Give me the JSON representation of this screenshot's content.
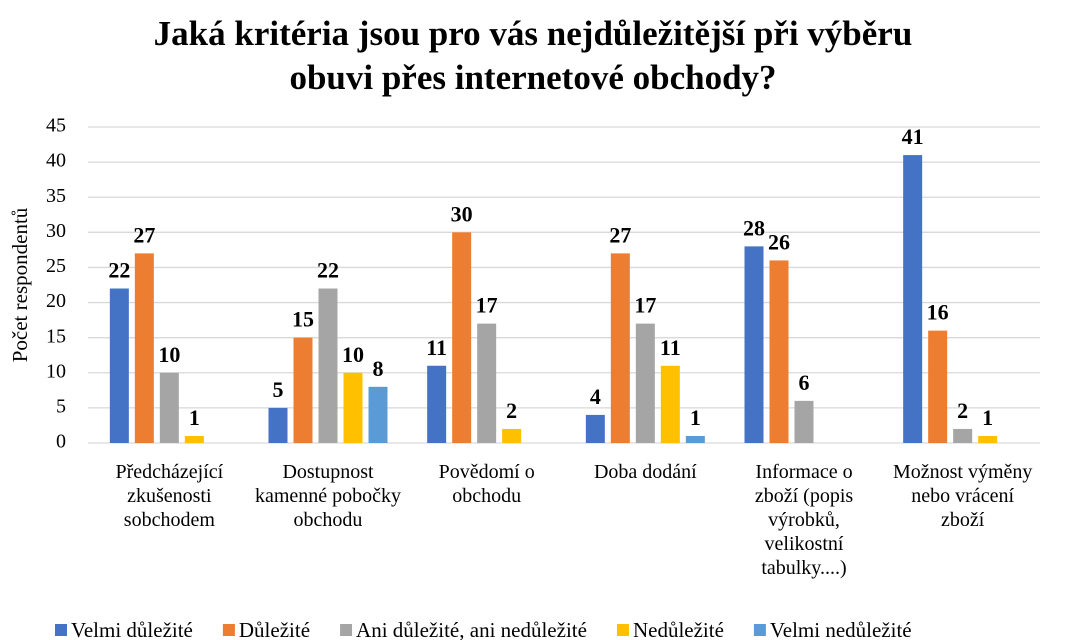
{
  "chart_data": {
    "type": "bar",
    "title": "Jaká kritéria jsou pro vás nejdůležitější při výběru obuvi přes internetové obchody?",
    "y_label": "Počet respondentů",
    "categories": [
      "Předcházející zkušenosti sobchodem",
      "Dostupnost kamenné pobočky obchodu",
      "Povědomí o obchodu",
      "Doba dodání",
      "Informace o zboží (popis výrobků, velikostní tabulky....)",
      "Možnost výměny nebo vrácení zboží"
    ],
    "series": [
      {
        "name": "Velmi důležité",
        "color": "#4472c4",
        "values": [
          22,
          5,
          11,
          4,
          28,
          41
        ]
      },
      {
        "name": "Důležité",
        "color": "#ed7d31",
        "values": [
          27,
          15,
          30,
          27,
          26,
          16
        ]
      },
      {
        "name": "Ani důležité, ani nedůležité",
        "color": "#a5a5a5",
        "values": [
          10,
          22,
          17,
          17,
          6,
          2
        ]
      },
      {
        "name": "Nedůležité",
        "color": "#ffc000",
        "values": [
          1,
          10,
          2,
          11,
          null,
          1
        ]
      },
      {
        "name": "Velmi nedůležité",
        "color": "#5b9bd5",
        "values": [
          null,
          8,
          null,
          1,
          null,
          null
        ]
      }
    ],
    "ylim": [
      0,
      45
    ],
    "yticks": [
      0,
      5,
      10,
      15,
      20,
      25,
      30,
      35,
      40,
      45
    ],
    "grid": true,
    "legend": "bottom"
  }
}
